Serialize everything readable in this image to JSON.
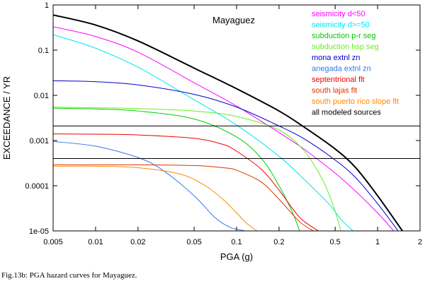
{
  "caption": "Fig.13b:  PGA hazard curves for Mayaguez.",
  "chart_data": {
    "type": "line",
    "title": "Mayaguez",
    "xlabel": "PGA (g)",
    "ylabel": "EXCEEDANCE / YR",
    "x_scale": "log",
    "y_scale": "log",
    "xlim": [
      0.005,
      2
    ],
    "ylim": [
      1e-05,
      1
    ],
    "x_ticks": [
      {
        "value": 0.005,
        "label": "0.005"
      },
      {
        "value": 0.01,
        "label": "0.01"
      },
      {
        "value": 0.02,
        "label": "0.02"
      },
      {
        "value": 0.05,
        "label": "0.05"
      },
      {
        "value": 0.1,
        "label": "0.1"
      },
      {
        "value": 0.2,
        "label": "0.2"
      },
      {
        "value": 0.5,
        "label": "0.5"
      },
      {
        "value": 1,
        "label": "1"
      },
      {
        "value": 2,
        "label": "2"
      }
    ],
    "y_ticks": [
      {
        "value": 1,
        "label": "1"
      },
      {
        "value": 0.1,
        "label": "0.1"
      },
      {
        "value": 0.01,
        "label": "0.01"
      },
      {
        "value": 0.001,
        "label": "0.001"
      },
      {
        "value": 0.0001,
        "label": "0.0001"
      },
      {
        "value": 1e-05,
        "label": "1e-05"
      }
    ],
    "reference_lines_y": [
      0.0021,
      0.0004
    ],
    "legend_position": "top-right",
    "series": [
      {
        "name": "seismicity d<50",
        "color": "#ff00ff",
        "x": [
          0.005,
          0.01,
          0.02,
          0.05,
          0.1,
          0.2,
          0.3,
          0.5,
          0.7,
          1.0,
          1.3
        ],
        "y": [
          0.33,
          0.2,
          0.09,
          0.019,
          0.0058,
          0.0015,
          0.00065,
          0.00019,
          7.5e-05,
          2.5e-05,
          1e-05
        ]
      },
      {
        "name": "seismicity d>=50",
        "color": "#00e5ee",
        "x": [
          0.005,
          0.01,
          0.02,
          0.05,
          0.1,
          0.2,
          0.3,
          0.45,
          0.55,
          0.67
        ],
        "y": [
          0.22,
          0.11,
          0.042,
          0.008,
          0.0022,
          0.00045,
          0.00014,
          4e-05,
          1.8e-05,
          1e-05
        ]
      },
      {
        "name": "subduction p-r seg",
        "color": "#00cc00",
        "x": [
          0.005,
          0.01,
          0.02,
          0.05,
          0.1,
          0.15,
          0.2,
          0.25,
          0.28
        ],
        "y": [
          0.0052,
          0.005,
          0.0045,
          0.003,
          0.0012,
          0.0004,
          0.0001,
          2.5e-05,
          1e-05
        ]
      },
      {
        "name": "subduction hsp seg",
        "color": "#66ee22",
        "x": [
          0.005,
          0.01,
          0.02,
          0.05,
          0.1,
          0.2,
          0.3,
          0.4,
          0.48,
          0.55
        ],
        "y": [
          0.0055,
          0.0053,
          0.0051,
          0.0045,
          0.0034,
          0.0017,
          0.0006,
          0.00015,
          4e-05,
          1e-05
        ]
      },
      {
        "name": "mona extnl zn",
        "color": "#0000cc",
        "x": [
          0.005,
          0.01,
          0.02,
          0.05,
          0.1,
          0.2,
          0.3,
          0.5,
          0.7,
          1.0,
          1.4
        ],
        "y": [
          0.021,
          0.02,
          0.017,
          0.0105,
          0.0055,
          0.0021,
          0.0011,
          0.00037,
          0.00015,
          4e-05,
          1e-05
        ]
      },
      {
        "name": "anegada extnl zn",
        "color": "#3377ee",
        "x": [
          0.005,
          0.01,
          0.02,
          0.03,
          0.05,
          0.07,
          0.09,
          0.115
        ],
        "y": [
          0.00095,
          0.00075,
          0.00042,
          0.00022,
          6e-05,
          2e-05,
          1.2e-05,
          1e-05
        ]
      },
      {
        "name": "septentrional flt",
        "color": "#ee0000",
        "x": [
          0.005,
          0.01,
          0.02,
          0.05,
          0.08,
          0.1,
          0.15,
          0.2,
          0.28,
          0.38
        ],
        "y": [
          0.0014,
          0.00138,
          0.00133,
          0.00112,
          0.00082,
          0.00058,
          0.00023,
          8e-05,
          2e-05,
          1e-05
        ]
      },
      {
        "name": "south lajas flt",
        "color": "#dd3300",
        "x": [
          0.005,
          0.01,
          0.02,
          0.05,
          0.08,
          0.1,
          0.15,
          0.2,
          0.28,
          0.35
        ],
        "y": [
          0.00029,
          0.00029,
          0.00029,
          0.00028,
          0.00025,
          0.00022,
          0.00012,
          5e-05,
          1.6e-05,
          1e-05
        ]
      },
      {
        "name": "south puerto rico slope flt",
        "color": "#ff8800",
        "x": [
          0.005,
          0.01,
          0.02,
          0.04,
          0.06,
          0.08,
          0.1,
          0.12,
          0.14
        ],
        "y": [
          0.00027,
          0.00027,
          0.00025,
          0.00018,
          0.0001,
          5e-05,
          2.5e-05,
          1.4e-05,
          1e-05
        ]
      },
      {
        "name": "all modeled sources",
        "color": "#000000",
        "x": [
          0.005,
          0.01,
          0.02,
          0.05,
          0.1,
          0.2,
          0.3,
          0.5,
          0.7,
          1.0,
          1.5
        ],
        "y": [
          0.6,
          0.36,
          0.16,
          0.04,
          0.014,
          0.0045,
          0.002,
          0.00065,
          0.00025,
          6e-05,
          1e-05
        ]
      }
    ]
  }
}
